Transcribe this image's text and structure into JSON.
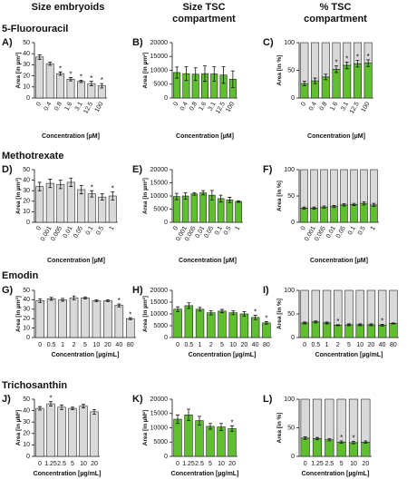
{
  "figure": {
    "column_headers": [
      "Size embryoids",
      "Size TSC compartment",
      "% TSC compartment"
    ],
    "row_titles": [
      "5-Fluorouracil",
      "Methotrexate",
      "Emodin",
      "Trichosanthin"
    ]
  },
  "chart_data": [
    {
      "type": "bar",
      "panel_label": "A)",
      "ylabel": "Area [in µm²]",
      "xlabel": "Concentration [µM]",
      "color": "#d9d9d9",
      "categories": [
        "0",
        "0.4",
        "0.8",
        "1.6",
        "3.1",
        "12.5",
        "100"
      ],
      "values": [
        37,
        31,
        22,
        17,
        15,
        13,
        11
      ],
      "errors": [
        2,
        1.5,
        1.5,
        1.5,
        1,
        2,
        2
      ],
      "significance": [
        null,
        null,
        "*",
        "*",
        "*",
        "*",
        "*"
      ],
      "ylim": [
        0,
        50
      ],
      "yticks": [
        0,
        10,
        20,
        30,
        40,
        50
      ]
    },
    {
      "type": "bar",
      "panel_label": "B)",
      "ylabel": "Area [in µm²]",
      "xlabel": "Concentration [µM]",
      "color": "#5fbf2f",
      "categories": [
        "0",
        "0.4",
        "0.8",
        "1.6",
        "3.1",
        "12.5",
        "100"
      ],
      "values": [
        9200,
        8800,
        8600,
        8800,
        8700,
        8300,
        6800
      ],
      "errors": [
        2000,
        2500,
        2300,
        2800,
        2600,
        3000,
        3000
      ],
      "ylim": [
        0,
        20000
      ],
      "yticks": [
        0,
        5000,
        10000,
        15000,
        20000
      ]
    },
    {
      "type": "stacked_bar",
      "panel_label": "C)",
      "ylabel": "Area [in %]",
      "xlabel": "Concentration [µM]",
      "categories": [
        "0",
        "0.4",
        "0.8",
        "1.6",
        "3.1",
        "12.5",
        "100"
      ],
      "series": [
        {
          "color": "#5fbf2f",
          "values": [
            26,
            31,
            38,
            52,
            59,
            62,
            63
          ],
          "errors": [
            4,
            5,
            5,
            6,
            6,
            6,
            6
          ]
        },
        {
          "color": "#d9d9d9",
          "values": [
            74,
            69,
            62,
            48,
            41,
            38,
            37
          ]
        }
      ],
      "significance": [
        null,
        null,
        null,
        "*",
        "*",
        "*",
        "*"
      ],
      "ylim": [
        0,
        100
      ],
      "yticks": [
        0,
        50,
        100
      ]
    },
    {
      "type": "bar",
      "panel_label": "D)",
      "ylabel": "Area [in µm²]",
      "xlabel": "Concentration [µM]",
      "color": "#d9d9d9",
      "categories": [
        "0",
        "0.001",
        "0.005",
        "0.01",
        "0.05",
        "0.1",
        "0.5",
        "1"
      ],
      "values": [
        34,
        37,
        36,
        38,
        31,
        27,
        24,
        25
      ],
      "errors": [
        4,
        4,
        4,
        4,
        4,
        3,
        3,
        4
      ],
      "significance": [
        null,
        null,
        null,
        null,
        null,
        "*",
        null,
        "*"
      ],
      "ylim": [
        0,
        50
      ],
      "yticks": [
        0,
        10,
        20,
        30,
        40,
        50
      ]
    },
    {
      "type": "bar",
      "panel_label": "E)",
      "ylabel": "Area [in µm²]",
      "xlabel": "Concentration [µM]",
      "color": "#5fbf2f",
      "categories": [
        "0",
        "0.001",
        "0.005",
        "0.01",
        "0.05",
        "0.1",
        "0.5",
        "1"
      ],
      "values": [
        9800,
        10000,
        10800,
        11200,
        10300,
        9000,
        8500,
        7900
      ],
      "errors": [
        1200,
        1200,
        500,
        800,
        1800,
        1300,
        1000,
        300
      ],
      "ylim": [
        0,
        20000
      ],
      "yticks": [
        0,
        5000,
        10000,
        15000,
        20000
      ]
    },
    {
      "type": "stacked_bar",
      "panel_label": "F)",
      "ylabel": "Area [in %]",
      "xlabel": "Concentration [µM]",
      "categories": [
        "0",
        "0.001",
        "0.005",
        "0.01",
        "0.05",
        "0.1",
        "0.5",
        "1"
      ],
      "series": [
        {
          "color": "#5fbf2f",
          "values": [
            27,
            27,
            29,
            30,
            33,
            34,
            36,
            33
          ],
          "errors": [
            2,
            2,
            2,
            2,
            2,
            2,
            3,
            3
          ]
        },
        {
          "color": "#d9d9d9",
          "values": [
            73,
            73,
            71,
            70,
            67,
            66,
            64,
            67
          ]
        }
      ],
      "ylim": [
        0,
        100
      ],
      "yticks": [
        0,
        50,
        100
      ]
    },
    {
      "type": "bar",
      "panel_label": "G)",
      "ylabel": "Area [in µm²]",
      "xlabel": "Concentration [µg/mL]",
      "color": "#d9d9d9",
      "categories": [
        "0",
        "0.5",
        "1",
        "2",
        "5",
        "10",
        "20",
        "40",
        "80"
      ],
      "values": [
        39,
        41,
        40,
        42,
        42,
        39,
        39,
        34,
        20
      ],
      "errors": [
        2,
        1.5,
        1.5,
        2,
        1,
        1,
        1,
        1.5,
        1
      ],
      "significance": [
        null,
        null,
        null,
        null,
        null,
        null,
        null,
        "*",
        "*"
      ],
      "ylim": [
        0,
        50
      ],
      "yticks": [
        0,
        10,
        20,
        30,
        40,
        50
      ]
    },
    {
      "type": "bar",
      "panel_label": "H)",
      "ylabel": "Area [in µm²]",
      "xlabel": "Concentration [µg/mL]",
      "color": "#5fbf2f",
      "categories": [
        "0",
        "0.5",
        "1",
        "2",
        "5",
        "10",
        "20",
        "40",
        "80"
      ],
      "values": [
        12000,
        13500,
        12000,
        10500,
        11200,
        10500,
        10000,
        8500,
        6200
      ],
      "errors": [
        1000,
        1200,
        800,
        900,
        700,
        800,
        1000,
        900,
        500
      ],
      "significance": [
        null,
        null,
        null,
        null,
        null,
        null,
        null,
        "*",
        "*"
      ],
      "ylim": [
        0,
        20000
      ],
      "yticks": [
        0,
        5000,
        10000,
        15000,
        20000
      ]
    },
    {
      "type": "stacked_bar",
      "panel_label": "I)",
      "ylabel": "Area [in %]",
      "xlabel": "Concentration [µg/mL]",
      "categories": [
        "0",
        "0.5",
        "1",
        "2",
        "5",
        "10",
        "20",
        "40",
        "80"
      ],
      "series": [
        {
          "color": "#5fbf2f",
          "values": [
            31,
            33,
            31,
            26,
            27,
            27,
            27,
            26,
            30
          ],
          "errors": [
            2,
            2,
            2,
            1,
            2,
            2,
            2,
            2,
            1
          ]
        },
        {
          "color": "#d9d9d9",
          "values": [
            69,
            67,
            69,
            74,
            73,
            73,
            73,
            74,
            70
          ]
        }
      ],
      "significance": [
        null,
        null,
        null,
        "*",
        null,
        null,
        null,
        "*",
        null
      ],
      "ylim": [
        0,
        100
      ],
      "yticks": [
        0,
        50,
        100
      ]
    },
    {
      "type": "bar",
      "panel_label": "J)",
      "ylabel": "Area [in µM²]",
      "xlabel": "Concentration [µg/mL]",
      "color": "#d9d9d9",
      "categories": [
        "0",
        "1.25",
        "2.5",
        "5",
        "10",
        "20"
      ],
      "values": [
        42,
        46,
        43,
        42,
        44,
        39
      ],
      "errors": [
        1.5,
        2,
        2,
        1,
        1.5,
        2
      ],
      "significance": [
        null,
        "*",
        null,
        null,
        null,
        null
      ],
      "ylim": [
        0,
        50
      ],
      "yticks": [
        0,
        10,
        20,
        30,
        40,
        50
      ]
    },
    {
      "type": "bar",
      "panel_label": "K)",
      "ylabel": "Area [in µM²]",
      "xlabel": "Concentration [µg/mL]",
      "color": "#5fbf2f",
      "categories": [
        "0",
        "1.25",
        "2.5",
        "5",
        "10",
        "20"
      ],
      "values": [
        13000,
        14500,
        12500,
        10500,
        10300,
        9700
      ],
      "errors": [
        1500,
        2000,
        1500,
        1000,
        1200,
        1000
      ],
      "significance": [
        null,
        null,
        null,
        null,
        null,
        "*"
      ],
      "ylim": [
        0,
        20000
      ],
      "yticks": [
        0,
        5000,
        10000,
        15000,
        20000
      ]
    },
    {
      "type": "stacked_bar",
      "panel_label": "L)",
      "ylabel": "Area [in %]",
      "xlabel": "Concentration [µg/mL]",
      "categories": [
        "0",
        "1.25",
        "2.5",
        "5",
        "10",
        "20"
      ],
      "series": [
        {
          "color": "#5fbf2f",
          "values": [
            32,
            31,
            29,
            25,
            24,
            25
          ],
          "errors": [
            2,
            2,
            2,
            2,
            2,
            2
          ]
        },
        {
          "color": "#d9d9d9",
          "values": [
            68,
            69,
            71,
            75,
            76,
            75
          ]
        }
      ],
      "significance": [
        null,
        null,
        null,
        "*",
        "*",
        null
      ],
      "ylim": [
        0,
        100
      ],
      "yticks": [
        0,
        50,
        100
      ]
    }
  ]
}
